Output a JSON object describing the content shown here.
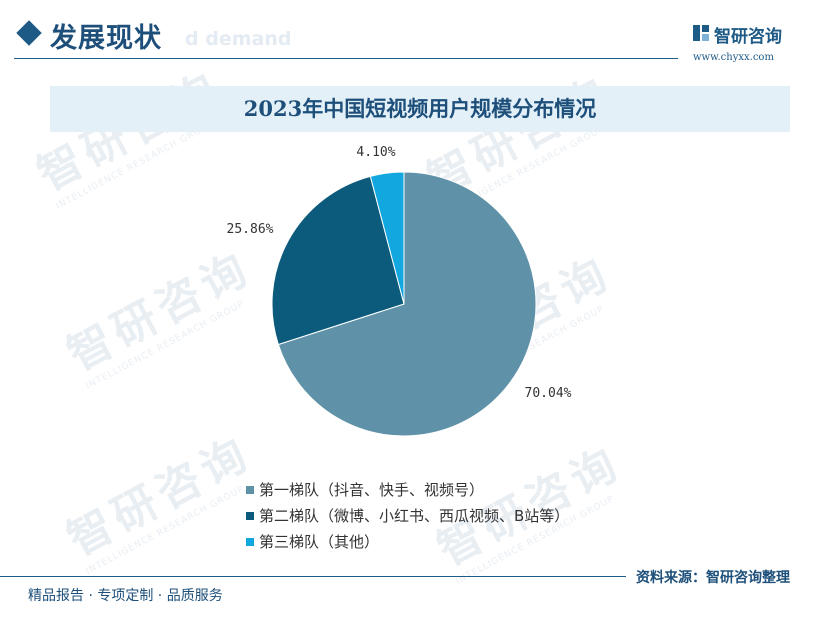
{
  "header": {
    "title": "发展现状",
    "subtitle_fragment": "d demand"
  },
  "logo": {
    "name": "智研咨询",
    "url": "www.chyxx.com"
  },
  "watermark": {
    "text": "智研咨询",
    "subtext": "INTELLIGENCE RESEARCH GROUP"
  },
  "footer": {
    "tagline": "精品报告 · 专项定制 · 品质服务",
    "source": "资料来源：智研咨询整理"
  },
  "colors": {
    "accent": "#1e5a86",
    "series": [
      "#5f92a8",
      "#0c5b7c",
      "#12a8df"
    ]
  },
  "chart_data": {
    "type": "pie",
    "title": "2023年中国短视频用户规模分布情况",
    "categories": [
      "第一梯队（抖音、快手、视频号）",
      "第二梯队（微博、小红书、西瓜视频、B站等）",
      "第三梯队（其他）"
    ],
    "values": [
      70.04,
      25.86,
      4.1
    ],
    "data_labels": [
      "70.04%",
      "25.86%",
      "4.10%"
    ],
    "legend_position": "bottom"
  }
}
